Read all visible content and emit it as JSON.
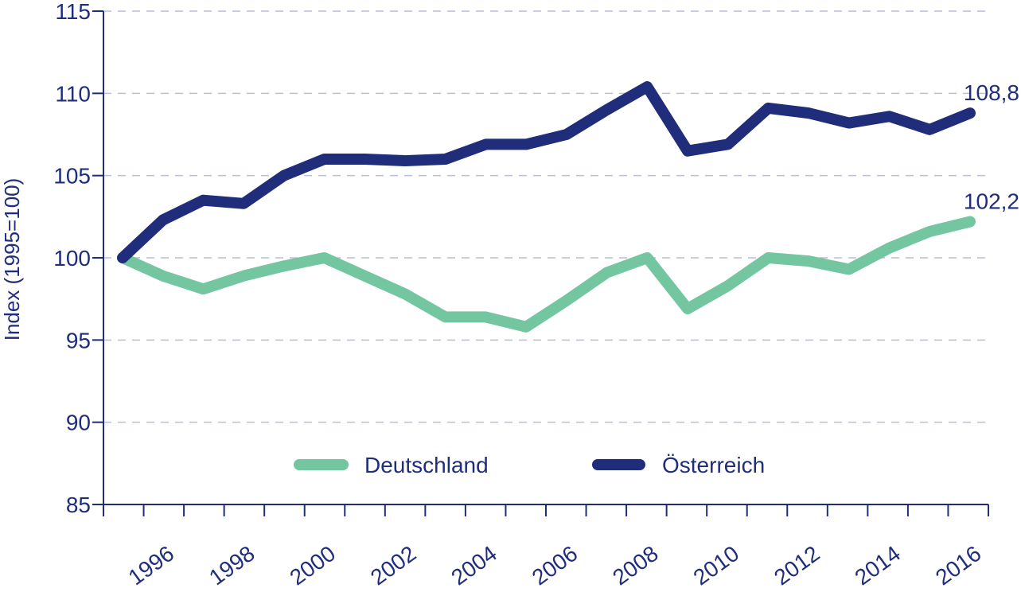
{
  "chart_data": {
    "type": "line",
    "title": "",
    "xlabel": "",
    "ylabel": "Index (1995=100)",
    "x": [
      1995,
      1996,
      1997,
      1998,
      1999,
      2000,
      2001,
      2002,
      2003,
      2004,
      2005,
      2006,
      2007,
      2008,
      2009,
      2010,
      2011,
      2012,
      2013,
      2014,
      2015,
      2016
    ],
    "xtick_labels": [
      "1996",
      "1998",
      "2000",
      "2002",
      "2004",
      "2006",
      "2008",
      "2010",
      "2012",
      "2014",
      "2016"
    ],
    "ylim": [
      85,
      115
    ],
    "yticks": [
      85,
      90,
      95,
      100,
      105,
      110,
      115
    ],
    "grid": true,
    "legend_position": "bottom-center",
    "series": [
      {
        "name": "Deutschland",
        "color": "#74c6a0",
        "values": [
          100,
          98.9,
          98.1,
          98.9,
          99.5,
          100,
          98.9,
          97.8,
          96.4,
          96.4,
          95.8,
          97.4,
          99.1,
          100,
          96.9,
          98.3,
          100,
          99.8,
          99.3,
          100.6,
          101.6,
          102.2
        ],
        "end_label": "102,2"
      },
      {
        "name": "Österreich",
        "color": "#1f2d7b",
        "values": [
          100,
          102.3,
          103.5,
          103.3,
          105,
          106,
          106,
          105.9,
          106,
          106.9,
          106.9,
          107.5,
          109,
          110.4,
          106.5,
          106.9,
          109.1,
          108.8,
          108.2,
          108.6,
          107.8,
          108.8
        ],
        "end_label": "108,8"
      }
    ]
  }
}
